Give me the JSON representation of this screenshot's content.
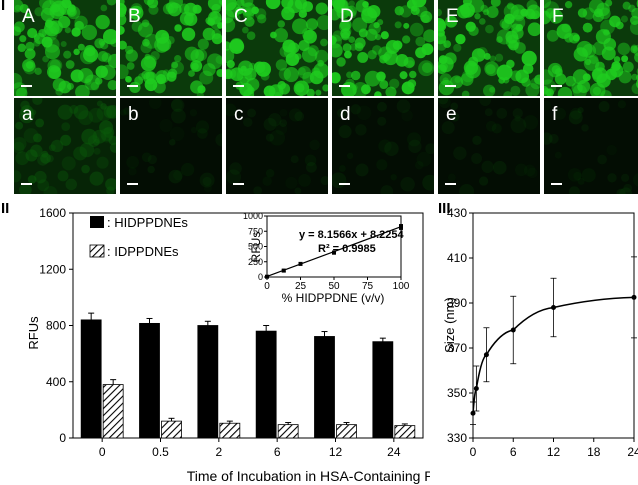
{
  "panels": {
    "top": "I",
    "bottom_left": "II",
    "bottom_right": "III"
  },
  "micrographs": {
    "top_row": [
      "A",
      "B",
      "C",
      "D",
      "E",
      "F"
    ],
    "bottom_row": [
      "a",
      "b",
      "c",
      "d",
      "e",
      "f"
    ],
    "top_color": "#1fcc1f",
    "bottom_color": "#0b5a0b"
  },
  "chart_data": [
    {
      "type": "bar",
      "categories": [
        "0",
        "0.5",
        "2",
        "6",
        "12",
        "24"
      ],
      "series": [
        {
          "name": ": HIDPPDNEs",
          "values": [
            840,
            815,
            800,
            760,
            722,
            685
          ],
          "errors": [
            48,
            35,
            30,
            40,
            35,
            25
          ],
          "color": "#000000",
          "pattern": "solid"
        },
        {
          "name": ": IDPPDNEs",
          "values": [
            380,
            120,
            105,
            95,
            95,
            88
          ],
          "errors": [
            35,
            20,
            15,
            15,
            15,
            12
          ],
          "color": "#ffffff",
          "pattern": "hatched"
        }
      ],
      "xlabel": "Time of Incubation in HSA-Containing PBS (h)",
      "ylabel": "RFUs",
      "ylim": [
        0,
        1600
      ],
      "yticks": [
        "0",
        "400",
        "800",
        "1200",
        "1600"
      ],
      "legend": "top-left",
      "inset": {
        "type": "scatter",
        "x": [
          0,
          12.5,
          25,
          50,
          100
        ],
        "y": [
          5,
          105,
          215,
          400,
          820
        ],
        "errors": [
          5,
          20,
          20,
          25,
          40
        ],
        "xlabel": "% HIDPPDNE (v/v)",
        "ylabel": "RFUs",
        "xlim": [
          0,
          100
        ],
        "ylim": [
          0,
          1000
        ],
        "xticks": [
          "0",
          "25",
          "50",
          "75",
          "100"
        ],
        "yticks": [
          "0",
          "250",
          "500",
          "750",
          "1000"
        ],
        "equation": "y = 8.1566x + 8.2254",
        "r2": "R² = 0.9985",
        "fit": {
          "slope": 8.1566,
          "intercept": 8.2254
        }
      }
    },
    {
      "type": "line",
      "x": [
        0,
        0.5,
        2,
        6,
        12,
        24
      ],
      "y": [
        341,
        352,
        367,
        378,
        388,
        392.5
      ],
      "errors": [
        5,
        10,
        12,
        15,
        13,
        18
      ],
      "xlabel": "",
      "ylabel": "Size (nm)",
      "xlim": [
        0,
        24
      ],
      "ylim": [
        330,
        430
      ],
      "xticks": [
        "0",
        "6",
        "12",
        "18",
        "24"
      ],
      "yticks": [
        "330",
        "350",
        "370",
        "390",
        "410",
        "430"
      ]
    }
  ]
}
